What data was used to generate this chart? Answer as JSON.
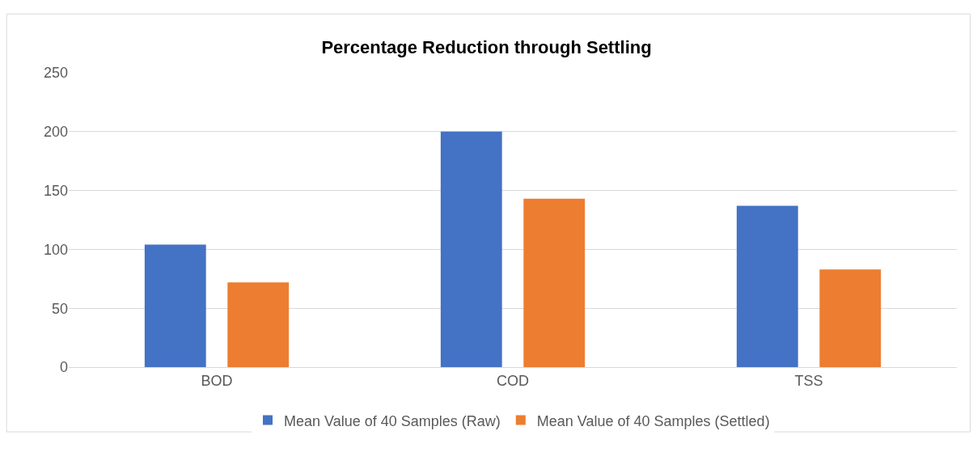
{
  "chart_data": {
    "type": "bar",
    "title": "Percentage Reduction through Settling",
    "categories": [
      "BOD",
      "COD",
      "TSS"
    ],
    "series": [
      {
        "name": "Mean Value of 40 Samples (Raw)",
        "color": "#4472c4",
        "values": [
          104,
          200,
          137
        ]
      },
      {
        "name": "Mean Value of 40 Samples (Settled)",
        "color": "#ed7d31",
        "values": [
          72,
          143,
          83
        ]
      }
    ],
    "ylim": [
      0,
      250
    ],
    "yticks": [
      0,
      50,
      100,
      150,
      200,
      250
    ],
    "grid": "y",
    "legend": "bottom"
  }
}
